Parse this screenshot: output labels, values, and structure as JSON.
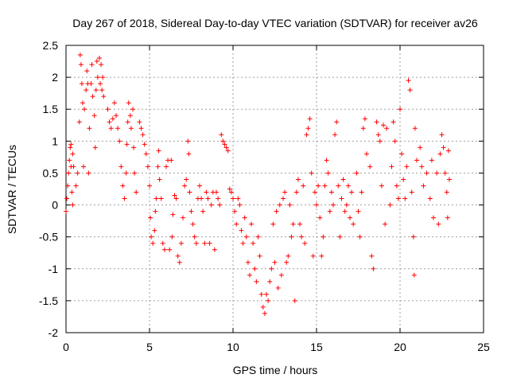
{
  "chart_data": {
    "type": "scatter",
    "title": "Day 267 of 2018, Sidereal Day-to-day VTEC variation (SDTVAR) for receiver av26",
    "xlabel": "GPS time / hours",
    "ylabel": "SDTVAR / TECUs",
    "xlim": [
      0,
      25
    ],
    "ylim": [
      -2,
      2.5
    ],
    "xticks": [
      0,
      5,
      10,
      15,
      20,
      25
    ],
    "yticks": [
      -2,
      -1.5,
      -1,
      -0.5,
      0,
      0.5,
      1,
      1.5,
      2,
      2.5
    ],
    "xtick_labels": [
      "0",
      "5",
      "10",
      "15",
      "20",
      "25"
    ],
    "ytick_labels": [
      "-2",
      "-1.5",
      "-1",
      "-0.5",
      "0",
      "0.5",
      "1",
      "1.5",
      "2",
      "2.5"
    ],
    "grid": true,
    "marker": "plus",
    "color": "#ff0000",
    "series": [
      {
        "name": "SDTVAR",
        "points": [
          [
            0.0,
            -0.1
          ],
          [
            0.05,
            0.1
          ],
          [
            0.1,
            0.3
          ],
          [
            0.15,
            0.5
          ],
          [
            0.2,
            0.7
          ],
          [
            0.25,
            0.9
          ],
          [
            0.3,
            0.95
          ],
          [
            0.3,
            0.6
          ],
          [
            0.35,
            0.2
          ],
          [
            0.4,
            0.0
          ],
          [
            0.4,
            0.8
          ],
          [
            0.45,
            0.6
          ],
          [
            0.6,
            0.3
          ],
          [
            0.7,
            0.5
          ],
          [
            0.8,
            1.3
          ],
          [
            0.85,
            2.35
          ],
          [
            0.9,
            2.2
          ],
          [
            0.95,
            1.9
          ],
          [
            1.0,
            1.6
          ],
          [
            1.05,
            0.6
          ],
          [
            1.1,
            1.5
          ],
          [
            1.2,
            1.8
          ],
          [
            1.25,
            2.1
          ],
          [
            1.3,
            1.9
          ],
          [
            1.35,
            0.5
          ],
          [
            1.4,
            1.2
          ],
          [
            1.5,
            1.9
          ],
          [
            1.55,
            2.2
          ],
          [
            1.6,
            1.7
          ],
          [
            1.7,
            1.4
          ],
          [
            1.75,
            0.9
          ],
          [
            1.8,
            1.8
          ],
          [
            1.85,
            2.25
          ],
          [
            1.9,
            2.0
          ],
          [
            2.0,
            2.3
          ],
          [
            2.05,
            1.9
          ],
          [
            2.1,
            2.2
          ],
          [
            2.15,
            1.8
          ],
          [
            2.2,
            2.0
          ],
          [
            2.25,
            1.7
          ],
          [
            2.5,
            1.5
          ],
          [
            2.6,
            1.3
          ],
          [
            2.7,
            1.2
          ],
          [
            2.8,
            1.35
          ],
          [
            2.9,
            1.6
          ],
          [
            3.0,
            1.4
          ],
          [
            3.1,
            1.2
          ],
          [
            3.2,
            1.0
          ],
          [
            3.3,
            0.6
          ],
          [
            3.4,
            0.3
          ],
          [
            3.5,
            0.1
          ],
          [
            3.6,
            0.5
          ],
          [
            3.65,
            0.95
          ],
          [
            3.7,
            1.3
          ],
          [
            3.75,
            1.6
          ],
          [
            3.85,
            1.4
          ],
          [
            3.9,
            1.2
          ],
          [
            4.0,
            1.5
          ],
          [
            4.05,
            0.9
          ],
          [
            4.1,
            0.5
          ],
          [
            4.2,
            0.2
          ],
          [
            4.4,
            1.3
          ],
          [
            4.5,
            1.2
          ],
          [
            4.6,
            1.1
          ],
          [
            4.7,
            0.95
          ],
          [
            4.8,
            0.8
          ],
          [
            4.9,
            0.6
          ],
          [
            5.0,
            0.3
          ],
          [
            5.05,
            -0.2
          ],
          [
            5.1,
            -0.5
          ],
          [
            5.2,
            -0.6
          ],
          [
            5.3,
            -0.4
          ],
          [
            5.35,
            -0.1
          ],
          [
            5.4,
            0.1
          ],
          [
            5.5,
            0.6
          ],
          [
            5.55,
            0.85
          ],
          [
            5.6,
            0.4
          ],
          [
            5.7,
            0.1
          ],
          [
            5.8,
            -0.6
          ],
          [
            5.9,
            -0.7
          ],
          [
            6.0,
            0.6
          ],
          [
            6.1,
            0.7
          ],
          [
            6.2,
            -0.7
          ],
          [
            6.3,
            0.7
          ],
          [
            6.35,
            -0.5
          ],
          [
            6.4,
            -0.15
          ],
          [
            6.5,
            0.15
          ],
          [
            6.6,
            0.1
          ],
          [
            6.7,
            -0.8
          ],
          [
            6.8,
            -0.9
          ],
          [
            6.9,
            -0.6
          ],
          [
            7.0,
            -0.2
          ],
          [
            7.1,
            0.3
          ],
          [
            7.2,
            0.4
          ],
          [
            7.3,
            1.0
          ],
          [
            7.35,
            0.8
          ],
          [
            7.4,
            0.2
          ],
          [
            7.5,
            -0.1
          ],
          [
            7.6,
            -0.3
          ],
          [
            7.7,
            -0.5
          ],
          [
            7.8,
            -0.6
          ],
          [
            7.9,
            0.1
          ],
          [
            8.0,
            0.3
          ],
          [
            8.1,
            0.1
          ],
          [
            8.2,
            -0.1
          ],
          [
            8.3,
            -0.6
          ],
          [
            8.4,
            0.2
          ],
          [
            8.5,
            0.1
          ],
          [
            8.6,
            -0.6
          ],
          [
            8.7,
            0.0
          ],
          [
            8.8,
            0.2
          ],
          [
            8.9,
            -0.7
          ],
          [
            9.0,
            0.2
          ],
          [
            9.1,
            0.1
          ],
          [
            9.2,
            0.0
          ],
          [
            9.3,
            1.1
          ],
          [
            9.4,
            1.0
          ],
          [
            9.5,
            0.95
          ],
          [
            9.6,
            0.9
          ],
          [
            9.7,
            0.85
          ],
          [
            9.8,
            0.25
          ],
          [
            9.9,
            0.2
          ],
          [
            10.0,
            0.1
          ],
          [
            10.1,
            -0.1
          ],
          [
            10.2,
            -0.3
          ],
          [
            10.3,
            0.1
          ],
          [
            10.4,
            0.0
          ],
          [
            10.5,
            -0.4
          ],
          [
            10.6,
            -0.6
          ],
          [
            10.7,
            -0.2
          ],
          [
            10.8,
            -0.5
          ],
          [
            10.9,
            -0.9
          ],
          [
            11.0,
            -1.1
          ],
          [
            11.1,
            -0.3
          ],
          [
            11.2,
            -0.6
          ],
          [
            11.3,
            -1.0
          ],
          [
            11.4,
            -1.2
          ],
          [
            11.5,
            -0.5
          ],
          [
            11.6,
            -0.8
          ],
          [
            11.7,
            -1.4
          ],
          [
            11.8,
            -1.6
          ],
          [
            11.9,
            -1.7
          ],
          [
            12.0,
            -1.4
          ],
          [
            12.1,
            -1.5
          ],
          [
            12.2,
            -1.2
          ],
          [
            12.3,
            -1.0
          ],
          [
            12.4,
            -0.3
          ],
          [
            12.5,
            -0.9
          ],
          [
            12.6,
            -0.1
          ],
          [
            12.7,
            -1.3
          ],
          [
            12.8,
            0.0
          ],
          [
            12.9,
            -1.1
          ],
          [
            13.0,
            0.1
          ],
          [
            13.1,
            0.2
          ],
          [
            13.2,
            -0.9
          ],
          [
            13.3,
            -0.8
          ],
          [
            13.4,
            0.0
          ],
          [
            13.5,
            -0.5
          ],
          [
            13.6,
            -0.3
          ],
          [
            13.7,
            -1.5
          ],
          [
            13.8,
            0.2
          ],
          [
            13.9,
            0.4
          ],
          [
            14.0,
            -0.3
          ],
          [
            14.1,
            -0.5
          ],
          [
            14.2,
            0.3
          ],
          [
            14.3,
            -0.6
          ],
          [
            14.4,
            1.1
          ],
          [
            14.5,
            1.2
          ],
          [
            14.6,
            1.35
          ],
          [
            14.7,
            0.5
          ],
          [
            14.8,
            -0.8
          ],
          [
            14.9,
            0.2
          ],
          [
            15.0,
            0.0
          ],
          [
            15.1,
            0.3
          ],
          [
            15.2,
            -0.2
          ],
          [
            15.3,
            -0.8
          ],
          [
            15.4,
            -0.5
          ],
          [
            15.5,
            0.3
          ],
          [
            15.6,
            0.7
          ],
          [
            15.7,
            0.5
          ],
          [
            15.8,
            -0.1
          ],
          [
            15.9,
            0.2
          ],
          [
            16.0,
            0.0
          ],
          [
            16.1,
            1.1
          ],
          [
            16.2,
            1.3
          ],
          [
            16.3,
            0.3
          ],
          [
            16.4,
            -0.5
          ],
          [
            16.5,
            0.1
          ],
          [
            16.6,
            0.4
          ],
          [
            16.7,
            -0.1
          ],
          [
            16.8,
            0.0
          ],
          [
            16.9,
            0.3
          ],
          [
            17.0,
            -0.2
          ],
          [
            17.1,
            0.2
          ],
          [
            17.2,
            -0.3
          ],
          [
            17.4,
            0.5
          ],
          [
            17.5,
            -0.1
          ],
          [
            17.6,
            -0.5
          ],
          [
            17.7,
            0.2
          ],
          [
            17.8,
            1.2
          ],
          [
            17.9,
            1.35
          ],
          [
            18.0,
            0.8
          ],
          [
            18.2,
            0.6
          ],
          [
            18.3,
            -0.8
          ],
          [
            18.4,
            -1.0
          ],
          [
            18.6,
            1.3
          ],
          [
            18.7,
            1.1
          ],
          [
            18.8,
            1.0
          ],
          [
            18.9,
            0.3
          ],
          [
            19.0,
            1.25
          ],
          [
            19.1,
            -0.3
          ],
          [
            19.2,
            1.2
          ],
          [
            19.4,
            0.0
          ],
          [
            19.5,
            0.6
          ],
          [
            19.6,
            1.3
          ],
          [
            19.7,
            1.0
          ],
          [
            19.8,
            0.3
          ],
          [
            19.9,
            0.1
          ],
          [
            20.0,
            1.5
          ],
          [
            20.1,
            0.8
          ],
          [
            20.2,
            0.4
          ],
          [
            20.3,
            0.1
          ],
          [
            20.4,
            0.6
          ],
          [
            20.5,
            1.95
          ],
          [
            20.6,
            1.8
          ],
          [
            20.7,
            0.2
          ],
          [
            20.8,
            -0.5
          ],
          [
            20.85,
            -1.1
          ],
          [
            20.9,
            1.2
          ],
          [
            21.0,
            0.7
          ],
          [
            21.2,
            0.9
          ],
          [
            21.3,
            0.6
          ],
          [
            21.4,
            0.3
          ],
          [
            21.6,
            0.5
          ],
          [
            21.8,
            0.1
          ],
          [
            21.9,
            0.7
          ],
          [
            22.0,
            -0.2
          ],
          [
            22.2,
            0.5
          ],
          [
            22.3,
            -0.3
          ],
          [
            22.4,
            0.8
          ],
          [
            22.5,
            1.1
          ],
          [
            22.6,
            0.9
          ],
          [
            22.7,
            0.5
          ],
          [
            22.8,
            0.2
          ],
          [
            22.85,
            -0.2
          ],
          [
            22.9,
            0.85
          ],
          [
            22.95,
            0.4
          ]
        ]
      }
    ]
  }
}
